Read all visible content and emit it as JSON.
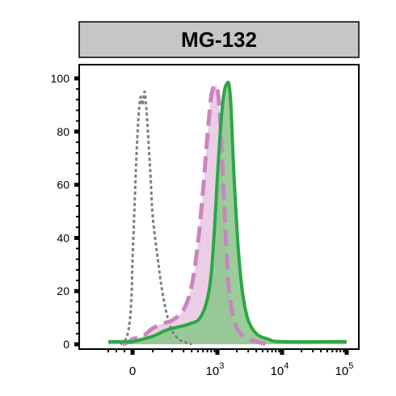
{
  "chart_data": {
    "type": "area",
    "title": "MG-132",
    "xlabel": "",
    "ylabel": "",
    "x_scale": "biexponential",
    "xlim": [
      -300,
      100000
    ],
    "ylim": [
      0,
      100
    ],
    "y_ticks": [
      0,
      20,
      40,
      60,
      80,
      100
    ],
    "y_tick_labels": [
      "0",
      "20",
      "40",
      "60",
      "80",
      "100"
    ],
    "x_ticks": [
      0,
      1000,
      10000,
      100000
    ],
    "x_tick_labels": [
      {
        "base": "0",
        "exp": ""
      },
      {
        "base": "10",
        "exp": "3"
      },
      {
        "base": "10",
        "exp": "4"
      },
      {
        "base": "10",
        "exp": "5"
      }
    ],
    "grid": false,
    "legend": "none",
    "series": [
      {
        "style": "grey-dotted",
        "color": "#808080",
        "fill": "none",
        "x": [
          -150,
          -100,
          -60,
          -30,
          -10,
          0,
          10,
          20,
          30,
          40,
          50,
          60,
          70,
          80,
          90,
          100,
          120,
          140,
          170,
          200,
          250,
          300,
          400
        ],
        "y": [
          0,
          1,
          4,
          10,
          20,
          32,
          52,
          72,
          86,
          93,
          90,
          95,
          87,
          75,
          62,
          48,
          32,
          20,
          10,
          5,
          2,
          1,
          0
        ]
      },
      {
        "style": "pink-dashed",
        "color": "#c985c0",
        "fill": "#e8c6e2",
        "x": [
          -120,
          -40,
          0,
          50,
          100,
          150,
          200,
          300,
          400,
          500,
          600,
          700,
          800,
          900,
          1000,
          1100,
          1200,
          1300,
          1400,
          1500,
          1700,
          2000,
          2500,
          3000,
          4000,
          6000
        ],
        "y": [
          0,
          1,
          2,
          3,
          6,
          8,
          9,
          13,
          22,
          38,
          58,
          78,
          93,
          97,
          96,
          85,
          66,
          48,
          33,
          21,
          12,
          6,
          3,
          2,
          1,
          0
        ]
      },
      {
        "style": "green-solid",
        "color": "#2ca646",
        "fill": "#90c88f",
        "x": [
          -300,
          -100,
          0,
          100,
          150,
          200,
          300,
          400,
          500,
          600,
          700,
          800,
          900,
          1000,
          1100,
          1200,
          1300,
          1400,
          1500,
          1600,
          1700,
          1800,
          2000,
          2200,
          2500,
          3000,
          4000,
          6000,
          10000,
          100000
        ],
        "y": [
          1,
          1,
          1,
          3,
          5,
          6,
          7,
          8,
          9,
          12,
          17,
          26,
          43,
          63,
          79,
          90,
          96,
          98,
          98,
          92,
          78,
          64,
          44,
          30,
          18,
          9,
          4,
          2,
          1,
          1
        ]
      }
    ]
  }
}
